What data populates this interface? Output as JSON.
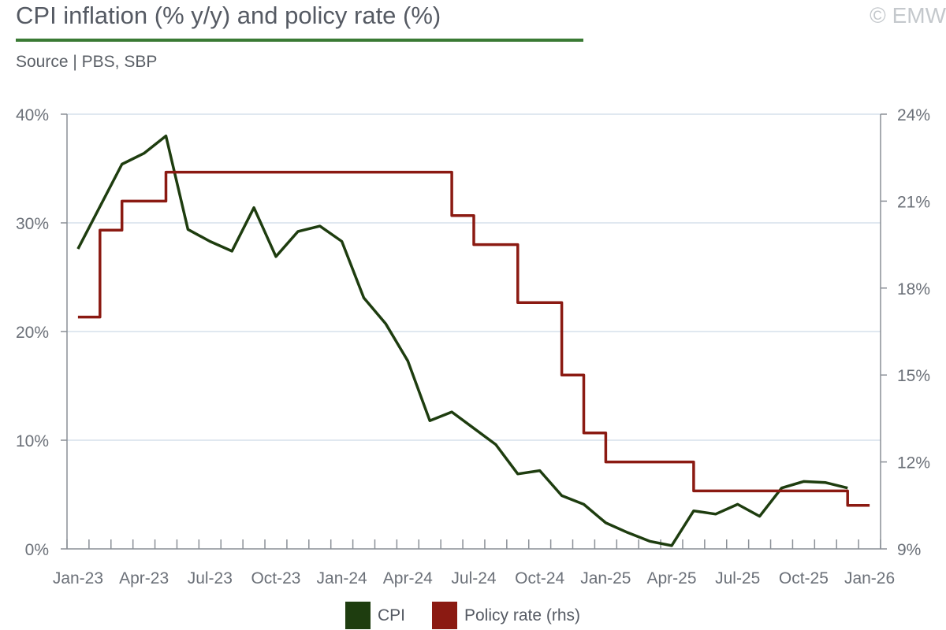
{
  "header": {
    "title": "CPI inflation (% y/y) and policy rate (%)",
    "copyright": "© EMW",
    "source": "Source | PBS, SBP"
  },
  "colors": {
    "accent": "#3a7a34",
    "cpi": "#1e3d0f",
    "policy": "#8b1a12",
    "grid": "#d5e0ec"
  },
  "chart_data": {
    "type": "line",
    "title": "CPI inflation (% y/y) and policy rate (%)",
    "x": [
      "Jan-23",
      "Feb-23",
      "Mar-23",
      "Apr-23",
      "May-23",
      "Jun-23",
      "Jul-23",
      "Aug-23",
      "Sep-23",
      "Oct-23",
      "Nov-23",
      "Dec-23",
      "Jan-24",
      "Feb-24",
      "Mar-24",
      "Apr-24",
      "May-24",
      "Jun-24",
      "Jul-24",
      "Aug-24",
      "Sep-24",
      "Oct-24",
      "Nov-24",
      "Dec-24",
      "Jan-25",
      "Feb-25",
      "Mar-25",
      "Apr-25",
      "May-25",
      "Jun-25",
      "Jul-25",
      "Aug-25",
      "Sep-25",
      "Oct-25",
      "Nov-25",
      "Dec-25",
      "Jan-26"
    ],
    "x_tick_labels": [
      "Jan-23",
      "Apr-23",
      "Jul-23",
      "Oct-23",
      "Jan-24",
      "Apr-24",
      "Jul-24",
      "Oct-24",
      "Jan-25",
      "Apr-25",
      "Jul-25",
      "Oct-25",
      "Jan-26"
    ],
    "y_left": {
      "range": [
        0,
        40
      ],
      "ticks": [
        "0%",
        "10%",
        "20%",
        "30%",
        "40%"
      ]
    },
    "y_right": {
      "range": [
        9,
        24
      ],
      "ticks": [
        "9%",
        "12%",
        "15%",
        "18%",
        "21%",
        "24%"
      ]
    },
    "grid": true,
    "legend_position": "bottom-center",
    "series": [
      {
        "name": "CPI",
        "axis": "left",
        "color": "#1e3d0f",
        "values": [
          27.6,
          31.5,
          35.4,
          36.4,
          38.0,
          29.4,
          28.3,
          27.4,
          31.4,
          26.9,
          29.2,
          29.7,
          28.3,
          23.1,
          20.7,
          17.3,
          11.8,
          12.6,
          11.1,
          9.6,
          6.9,
          7.2,
          4.9,
          4.1,
          2.4,
          1.5,
          0.7,
          0.3,
          3.5,
          3.2,
          4.1,
          3.0,
          5.6,
          6.2,
          6.1,
          5.6,
          null
        ]
      },
      {
        "name": "Policy rate (rhs)",
        "axis": "right",
        "color": "#8b1a12",
        "step": true,
        "values": [
          17.0,
          20.0,
          21.0,
          21.0,
          22.0,
          22.0,
          22.0,
          22.0,
          22.0,
          22.0,
          22.0,
          22.0,
          22.0,
          22.0,
          22.0,
          22.0,
          22.0,
          20.5,
          19.5,
          19.5,
          17.5,
          17.5,
          15.0,
          13.0,
          12.0,
          12.0,
          12.0,
          12.0,
          11.0,
          11.0,
          11.0,
          11.0,
          11.0,
          11.0,
          11.0,
          10.5,
          10.5
        ]
      }
    ]
  }
}
